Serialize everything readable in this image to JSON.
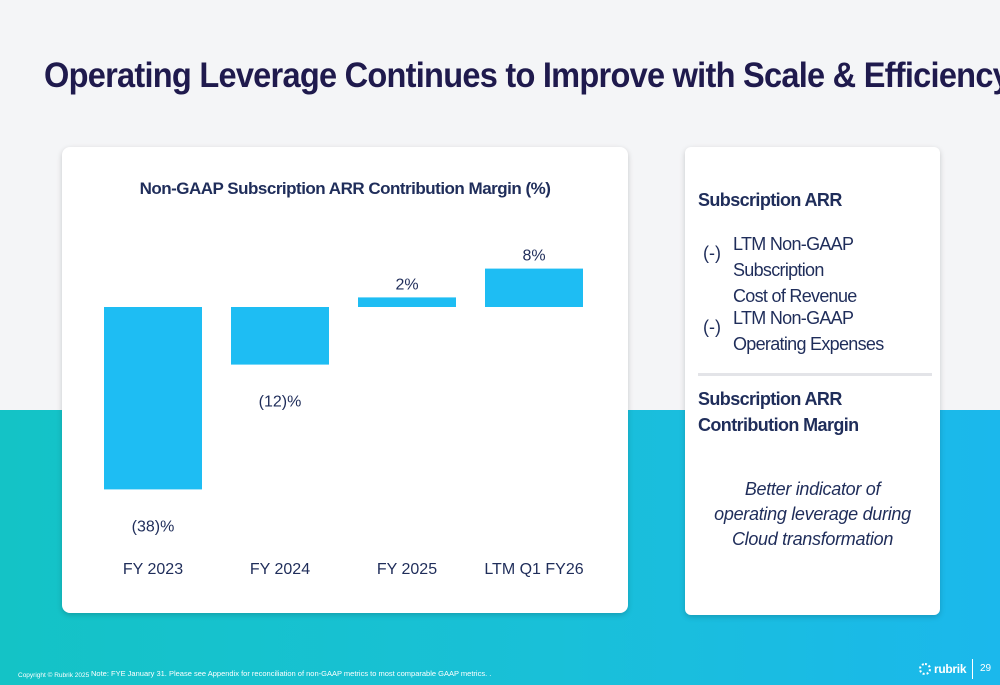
{
  "slide": {
    "title": "Operating Leverage Continues to Improve with Scale & Efficiency",
    "page_number": "29",
    "copyright": "Copyright © Rubrik 2025",
    "footnote": "Note: FYE January 31. Please see Appendix for reconciliation of non-GAAP metrics to most comparable GAAP metrics. .",
    "logo_text": "rubrik"
  },
  "side_panel": {
    "heading1": "Subscription ARR",
    "items": [
      {
        "sign": "(-)",
        "line1": "LTM Non-GAAP Subscription",
        "line2": "Cost of Revenue"
      },
      {
        "sign": "(-)",
        "line1": "LTM Non-GAAP",
        "line2": "Operating Expenses"
      }
    ],
    "heading2": "Subscription ARR Contribution Margin",
    "note_lines": [
      "Better indicator of",
      "operating leverage during",
      "Cloud transformation"
    ]
  },
  "colors": {
    "bar": "#1ebdf3",
    "title": "#1f1a4d",
    "text": "#1f2d5a",
    "band": "#17c0d4"
  },
  "chart_data": {
    "type": "bar",
    "title": "Non-GAAP Subscription ARR Contribution Margin (%)",
    "categories": [
      "FY 2023",
      "FY 2024",
      "FY 2025",
      "LTM Q1 FY26"
    ],
    "values": [
      -38,
      -12,
      2,
      8
    ],
    "data_labels": [
      "(38)%",
      "(12)%",
      "2%",
      "8%"
    ],
    "unit": "%",
    "ylim": [
      -40,
      10
    ],
    "grid": false,
    "legend": "none"
  }
}
